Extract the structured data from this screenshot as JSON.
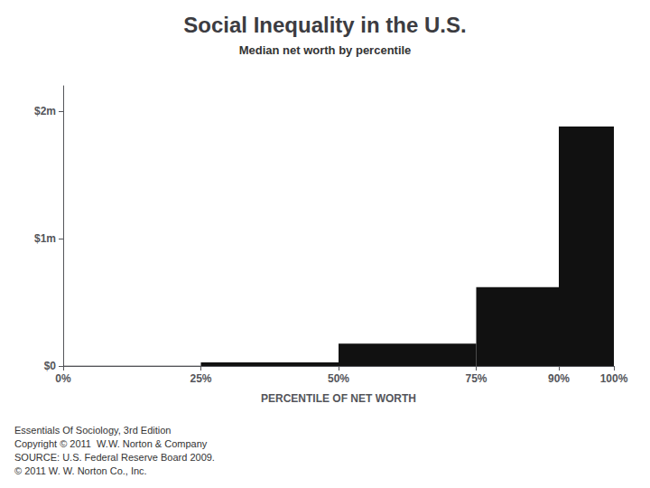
{
  "chart_data": {
    "type": "histogram",
    "title": "Social Inequality in the U.S.",
    "subtitle": "Median net worth by percentile",
    "xlabel": "PERCENTILE OF NET WORTH",
    "bins": [
      0,
      25,
      50,
      75,
      90,
      100
    ],
    "values": [
      2000,
      28000,
      175000,
      620000,
      1880000
    ],
    "color": "#111111",
    "xlim": [
      0,
      100
    ],
    "xticks": [
      {
        "value": 0,
        "label": "0%"
      },
      {
        "value": 25,
        "label": "25%"
      },
      {
        "value": 50,
        "label": "50%"
      },
      {
        "value": 75,
        "label": "75%"
      },
      {
        "value": 90,
        "label": "90%"
      },
      {
        "value": 100,
        "label": "100%"
      }
    ],
    "ylim": [
      0,
      2200000
    ],
    "yticks": [
      {
        "value": 0,
        "label": "$0"
      },
      {
        "value": 1000000,
        "label": "$1m"
      },
      {
        "value": 2000000,
        "label": "$2m"
      }
    ],
    "grid": false,
    "annotations": [
      "Essentials Of Sociology, 3rd Edition",
      "Copyright © 2011  W.W. Norton & Company",
      "SOURCE: U.S. Federal Reserve Board 2009.",
      "© 2011 W. W. Norton Co., Inc."
    ]
  }
}
